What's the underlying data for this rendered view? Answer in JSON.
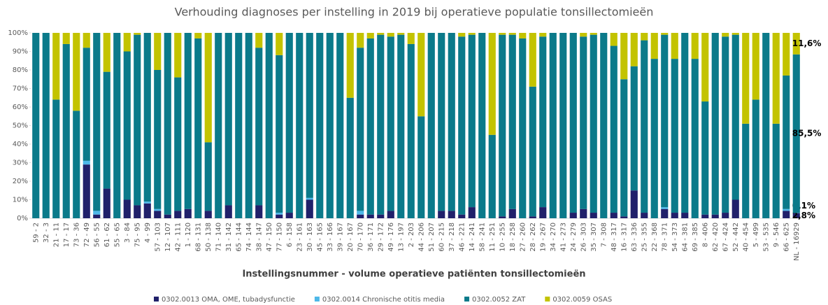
{
  "chart_data": {
    "type": "bar",
    "stacked": true,
    "title": "Verhouding diagnoses per instelling in 2019 bij operatieve populatie tonsillectomieën",
    "x_label": "Instellingsnummer - volume operatieve patiënten tonsillectomieën",
    "categories": [
      "59 - 2",
      "32 - 3",
      "21 - 11",
      "17 - 17",
      "73 - 36",
      "72 - 49",
      "56 - 55",
      "61 - 62",
      "55 - 65",
      "3 - 84",
      "75 - 95",
      "4 - 99",
      "57 - 103",
      "12 - 107",
      "42 - 111",
      "1 - 120",
      "68 - 131",
      "50 - 138",
      "71 - 140",
      "31 - 142",
      "65 - 144",
      "74 - 144",
      "38 - 147",
      "47 - 150",
      "77 - 150",
      "6 - 158",
      "23 - 161",
      "30 - 163",
      "45 - 165",
      "33 - 166",
      "39 - 167",
      "20 - 167",
      "70 - 170",
      "36 - 171",
      "29 - 172",
      "49 - 176",
      "13 - 197",
      "2 - 203",
      "44 - 206",
      "51 - 207",
      "60 - 215",
      "37 - 218",
      "46 - 221",
      "14 - 241",
      "58 - 241",
      "11 - 251",
      "10 - 255",
      "18 - 258",
      "27 - 260",
      "28 - 262",
      "19 - 267",
      "34 - 270",
      "41 - 273",
      "24 - 279",
      "26 - 303",
      "35 - 307",
      "7 - 308",
      "48 - 317",
      "16 - 317",
      "63 - 336",
      "25 - 355",
      "22 - 368",
      "78 - 371",
      "54 - 373",
      "64 - 381",
      "69 - 385",
      "8 - 406",
      "62 - 420",
      "67 - 424",
      "52 - 442",
      "40 - 454",
      "5 - 499",
      "53 - 535",
      "9 - 546",
      "66 - 625",
      "NL - 16929"
    ],
    "series": [
      {
        "name": "0302.0013 OMA, OME, tubadysfunctie",
        "color": "#20206a",
        "values": [
          0,
          0,
          0,
          0,
          0,
          29,
          2,
          16,
          0,
          10,
          7,
          8,
          4,
          2,
          4,
          5,
          0,
          4,
          0,
          7,
          0,
          0,
          7,
          0,
          2,
          3,
          0,
          10,
          0,
          0,
          0,
          0,
          2,
          2,
          2,
          4,
          0,
          0,
          0,
          0,
          4,
          4,
          2,
          6,
          0,
          0,
          1,
          5,
          0,
          1,
          6,
          0,
          0,
          3,
          5,
          3,
          0,
          3,
          1,
          15,
          3,
          0,
          5,
          3,
          3,
          0,
          2,
          2,
          3,
          10,
          0,
          0,
          0,
          0,
          4,
          2.8
        ],
        "value_labels": [
          null,
          null,
          null,
          null,
          null,
          null,
          null,
          null,
          null,
          null,
          null,
          null,
          null,
          null,
          null,
          null,
          null,
          null,
          null,
          null,
          null,
          null,
          null,
          null,
          null,
          null,
          null,
          null,
          null,
          null,
          null,
          null,
          null,
          null,
          null,
          null,
          null,
          null,
          null,
          null,
          null,
          null,
          null,
          null,
          null,
          null,
          null,
          null,
          null,
          null,
          null,
          null,
          null,
          null,
          null,
          null,
          null,
          null,
          null,
          null,
          null,
          null,
          null,
          null,
          null,
          null,
          null,
          null,
          null,
          null,
          null,
          null,
          null,
          null,
          null,
          "2,8%"
        ]
      },
      {
        "name": "0302.0014 Chronische otitis media",
        "color": "#4db8e8",
        "values": [
          0,
          0,
          0,
          0,
          0,
          2,
          2,
          0,
          0,
          0,
          0,
          1,
          1,
          0,
          0,
          0,
          0,
          0,
          0,
          0,
          0,
          0,
          0,
          0,
          1,
          0,
          0,
          1,
          0,
          0,
          0,
          0,
          2,
          0,
          0,
          0,
          0,
          0,
          0,
          0,
          0,
          0,
          0,
          0,
          0,
          0,
          0,
          0,
          0,
          0,
          0,
          0,
          0,
          0,
          0,
          0,
          0,
          0,
          0,
          0,
          0,
          0,
          1,
          0,
          0,
          0,
          0,
          0,
          0,
          0,
          0,
          0,
          0,
          0,
          1,
          0.1
        ],
        "value_labels": [
          null,
          null,
          null,
          null,
          null,
          null,
          null,
          null,
          null,
          null,
          null,
          null,
          null,
          null,
          null,
          null,
          null,
          null,
          null,
          null,
          null,
          null,
          null,
          null,
          null,
          null,
          null,
          null,
          null,
          null,
          null,
          null,
          null,
          null,
          null,
          null,
          null,
          null,
          null,
          null,
          null,
          null,
          null,
          null,
          null,
          null,
          null,
          null,
          null,
          null,
          null,
          null,
          null,
          null,
          null,
          null,
          null,
          null,
          null,
          null,
          null,
          null,
          null,
          null,
          null,
          null,
          null,
          null,
          null,
          null,
          null,
          null,
          null,
          null,
          null,
          "0,1%"
        ]
      },
      {
        "name": "0302.0052 ZAT",
        "color": "#0b7a8a",
        "values": [
          100,
          100,
          64,
          94,
          58,
          61,
          96,
          63,
          100,
          80,
          92,
          91,
          75,
          98,
          72,
          95,
          97,
          37,
          100,
          93,
          100,
          100,
          85,
          100,
          85,
          97,
          100,
          89,
          100,
          100,
          100,
          65,
          88,
          95,
          97,
          94,
          99,
          94,
          55,
          100,
          96,
          96,
          96,
          93,
          100,
          45,
          98,
          94,
          97,
          70,
          92,
          100,
          100,
          97,
          93,
          96,
          100,
          90,
          74,
          67,
          93,
          86,
          93,
          83,
          97,
          86,
          61,
          98,
          95,
          89,
          51,
          64,
          100,
          51,
          72,
          85.5
        ],
        "value_labels": [
          null,
          null,
          null,
          null,
          null,
          null,
          null,
          null,
          null,
          null,
          null,
          null,
          null,
          null,
          null,
          null,
          null,
          null,
          null,
          null,
          null,
          null,
          null,
          null,
          null,
          null,
          null,
          null,
          null,
          null,
          null,
          null,
          null,
          null,
          null,
          null,
          null,
          null,
          null,
          null,
          null,
          null,
          null,
          null,
          null,
          null,
          null,
          null,
          null,
          null,
          null,
          null,
          null,
          null,
          null,
          null,
          null,
          null,
          null,
          null,
          null,
          null,
          null,
          null,
          null,
          null,
          null,
          null,
          null,
          null,
          null,
          null,
          null,
          null,
          null,
          "85,5%"
        ]
      },
      {
        "name": "0302.0059 OSAS",
        "color": "#c3c300",
        "values": [
          0,
          0,
          36,
          6,
          42,
          8,
          0,
          21,
          0,
          10,
          1,
          0,
          20,
          0,
          24,
          0,
          3,
          59,
          0,
          0,
          0,
          0,
          8,
          0,
          12,
          0,
          0,
          0,
          0,
          0,
          0,
          35,
          8,
          3,
          1,
          2,
          1,
          6,
          45,
          0,
          0,
          0,
          2,
          1,
          0,
          55,
          1,
          1,
          3,
          29,
          2,
          0,
          0,
          0,
          2,
          1,
          0,
          7,
          25,
          18,
          4,
          14,
          1,
          14,
          0,
          14,
          37,
          0,
          2,
          1,
          49,
          36,
          0,
          49,
          23,
          11.6
        ],
        "value_labels": [
          null,
          null,
          null,
          null,
          null,
          null,
          null,
          null,
          null,
          null,
          null,
          null,
          null,
          null,
          null,
          null,
          null,
          null,
          null,
          null,
          null,
          null,
          null,
          null,
          null,
          null,
          null,
          null,
          null,
          null,
          null,
          null,
          null,
          null,
          null,
          null,
          null,
          null,
          null,
          null,
          null,
          null,
          null,
          null,
          null,
          null,
          null,
          null,
          null,
          null,
          null,
          null,
          null,
          null,
          null,
          null,
          null,
          null,
          null,
          null,
          null,
          null,
          null,
          null,
          null,
          null,
          null,
          null,
          null,
          null,
          null,
          null,
          null,
          null,
          null,
          "11,6%"
        ]
      }
    ],
    "ylim": [
      0,
      100
    ],
    "yticks": [
      {
        "value": 0,
        "label": "0%"
      },
      {
        "value": 10,
        "label": "10%"
      },
      {
        "value": 20,
        "label": "20%"
      },
      {
        "value": 30,
        "label": "30%"
      },
      {
        "value": 40,
        "label": "40%"
      },
      {
        "value": 50,
        "label": "50%"
      },
      {
        "value": 60,
        "label": "60%"
      },
      {
        "value": 70,
        "label": "70%"
      },
      {
        "value": 80,
        "label": "80%"
      },
      {
        "value": 90,
        "label": "90%"
      },
      {
        "value": 100,
        "label": "100%"
      }
    ],
    "legend": "bottom"
  }
}
